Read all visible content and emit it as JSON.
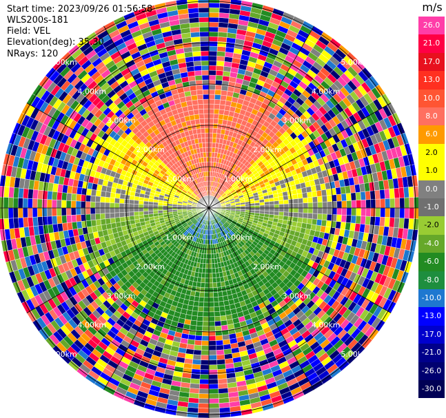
{
  "header": {
    "start_time": "Start time: 2023/09/26 01:56:58",
    "instrument": "WLS200s-181",
    "field": "Field: VEL",
    "elevation": "Elevation(deg): 35.30",
    "nrays": "NRays: 120"
  },
  "range_rings": [
    {
      "range_km": 1,
      "label": "1.00km"
    },
    {
      "range_km": 2,
      "label": "2.00km"
    },
    {
      "range_km": 3,
      "label": "3.00km"
    },
    {
      "range_km": 4,
      "label": "4.00km"
    },
    {
      "range_km": 5,
      "label": "5.00km"
    }
  ],
  "colorbar": {
    "unit": "m/s",
    "bins": [
      {
        "label": "26.0",
        "color": "#ff3da8"
      },
      {
        "label": "21.0",
        "color": "#ff0044"
      },
      {
        "label": "17.0",
        "color": "#e8101e"
      },
      {
        "label": "13.0",
        "color": "#ff3020"
      },
      {
        "label": "10.0",
        "color": "#ff5533"
      },
      {
        "label": "8.0",
        "color": "#ff7060"
      },
      {
        "label": "6.0",
        "color": "#ff9a00"
      },
      {
        "label": "2.0",
        "color": "#ffff00"
      },
      {
        "label": "1.0",
        "color": "#ffff00"
      },
      {
        "label": "0.0",
        "color": "#808080"
      },
      {
        "label": "-1.0",
        "color": "#707070"
      },
      {
        "label": "-2.0",
        "color": "#99cc33"
      },
      {
        "label": "-4.0",
        "color": "#66a82a"
      },
      {
        "label": "-6.0",
        "color": "#228b22"
      },
      {
        "label": "-8.0",
        "color": "#1e8e3e"
      },
      {
        "label": "-10.0",
        "color": "#1e78d0"
      },
      {
        "label": "-13.0",
        "color": "#0000ff"
      },
      {
        "label": "-17.0",
        "color": "#0000cd"
      },
      {
        "label": "-21.0",
        "color": "#00008b"
      },
      {
        "label": "-26.0",
        "color": "#000070"
      },
      {
        "label": "-30.0",
        "color": "#000055"
      }
    ]
  }
}
